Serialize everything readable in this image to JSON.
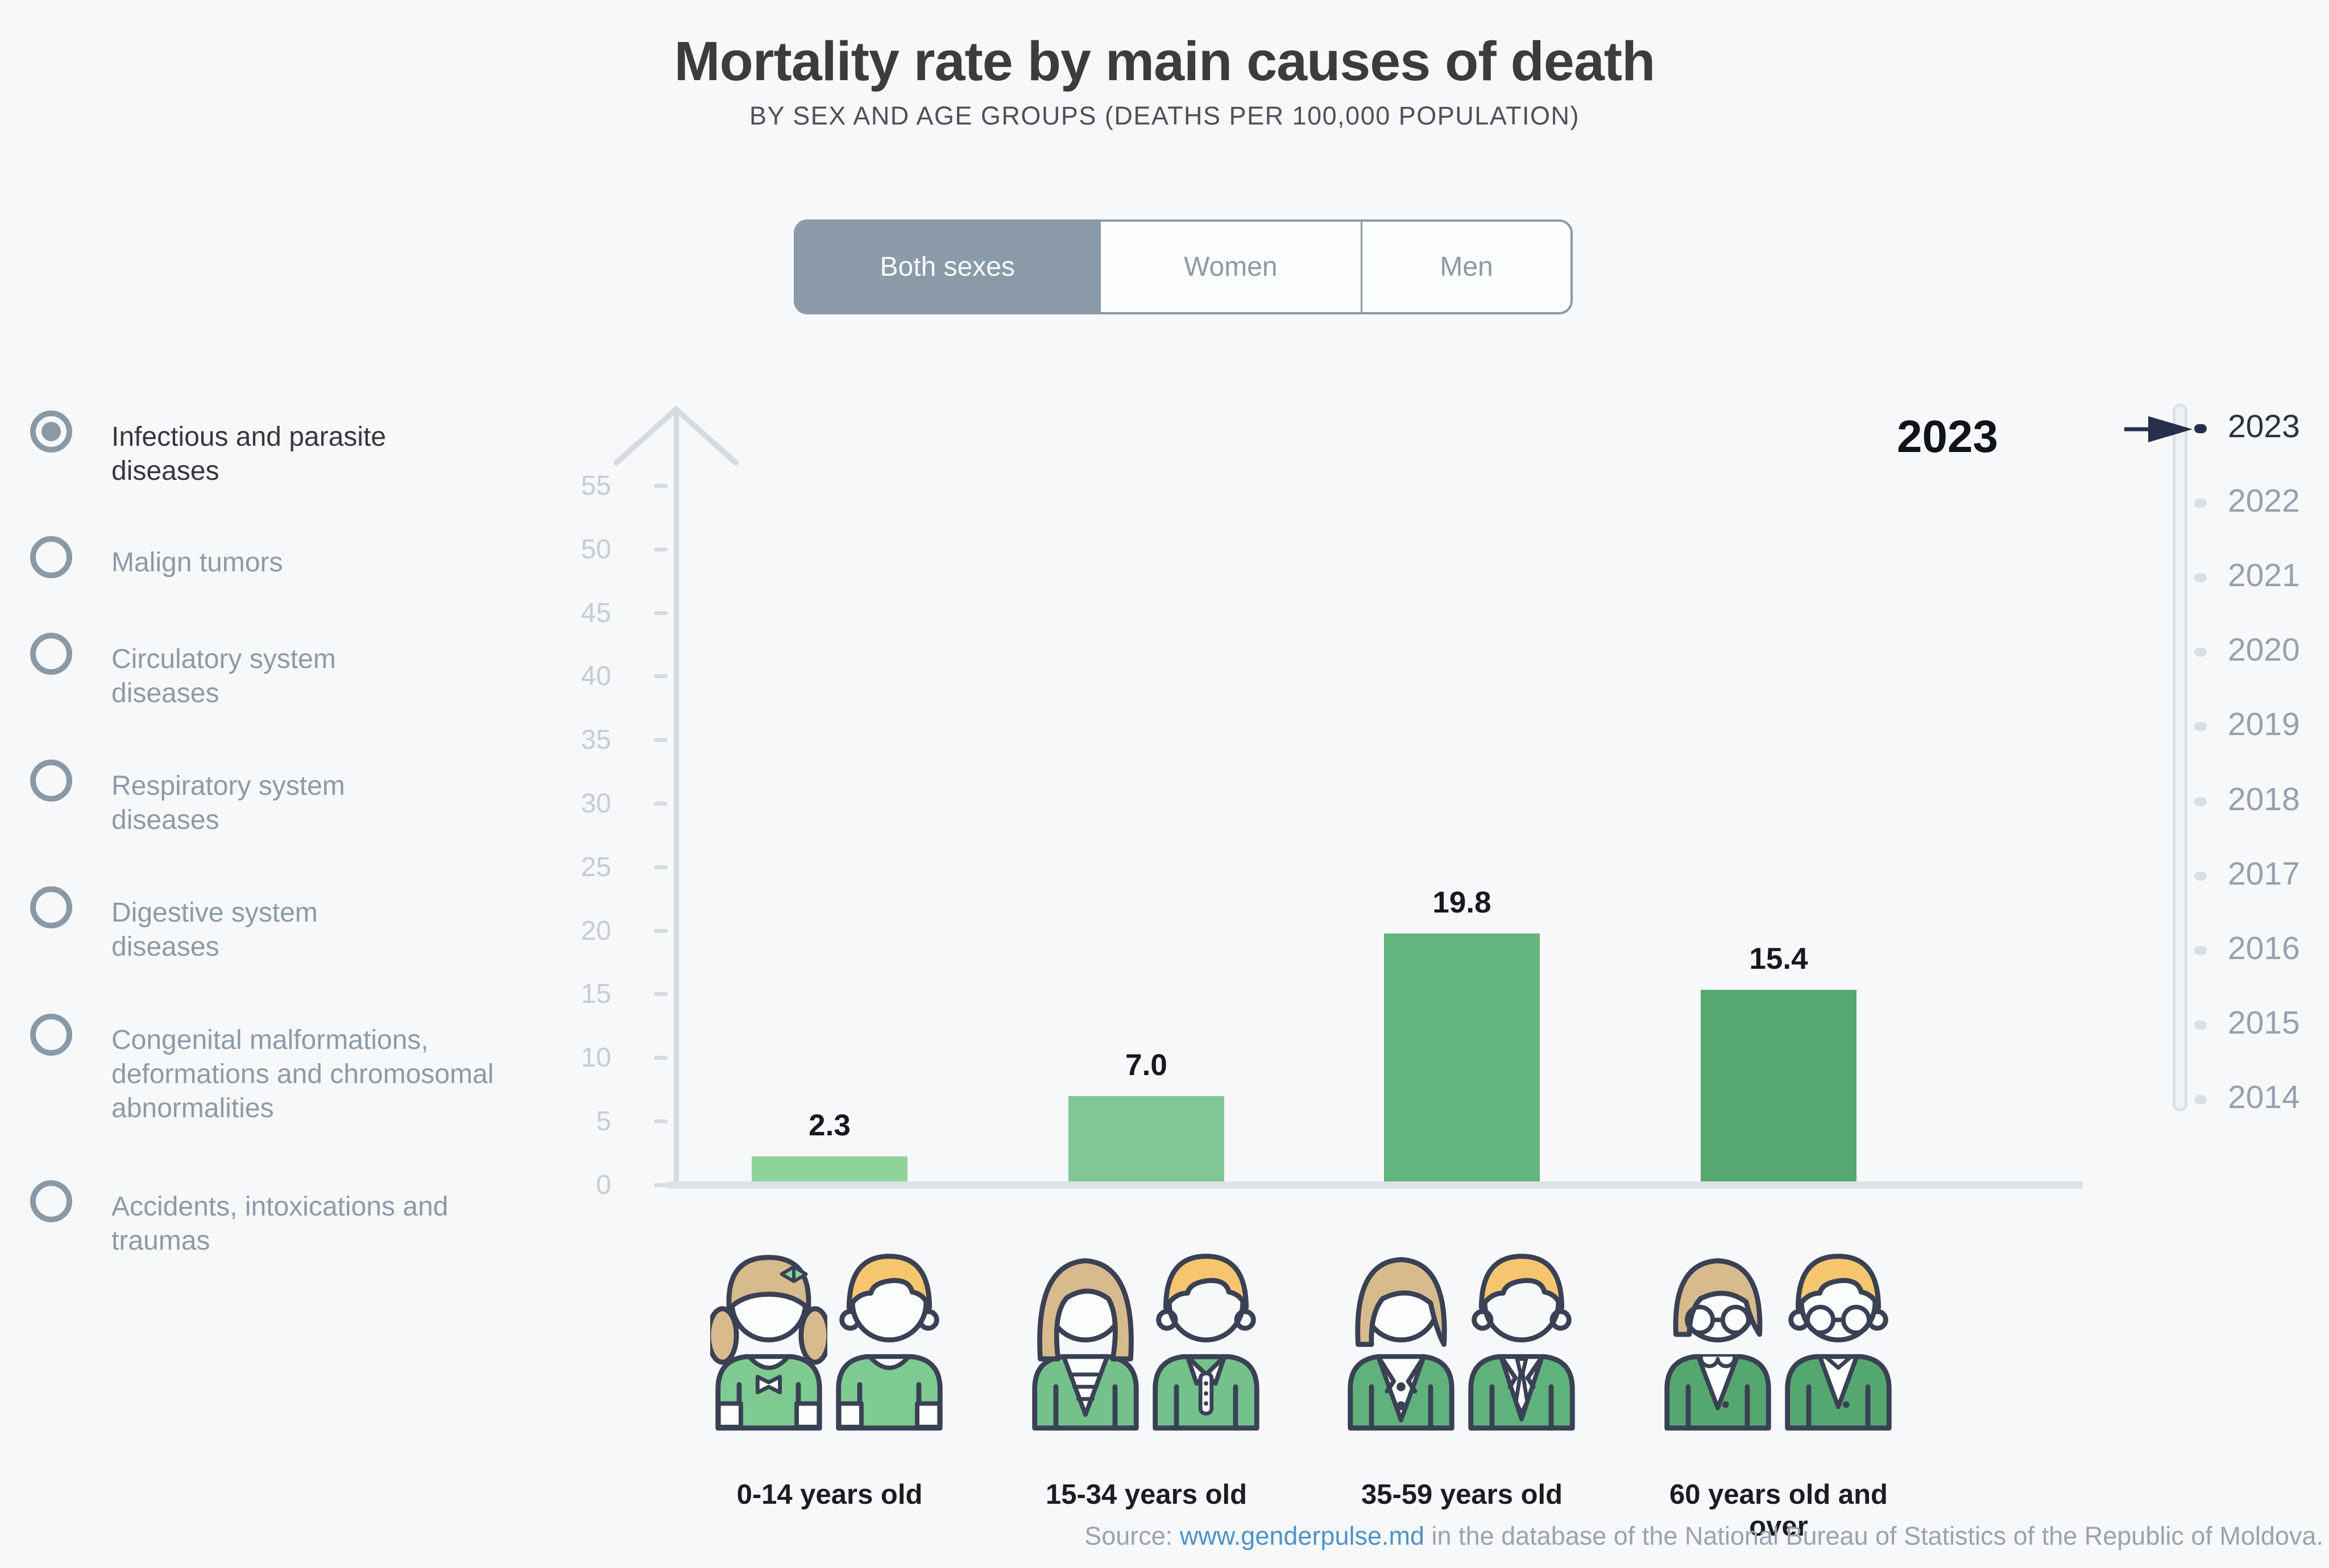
{
  "header": {
    "title": "Mortality rate by main causes of death",
    "subtitle": "BY SEX AND AGE GROUPS (DEATHS PER 100,000 POPULATION)"
  },
  "sex_toggle": {
    "options": [
      {
        "label": "Both sexes",
        "selected": true
      },
      {
        "label": "Women",
        "selected": false
      },
      {
        "label": "Men",
        "selected": false
      }
    ]
  },
  "causes": {
    "items": [
      {
        "label": "Infectious and parasite diseases",
        "selected": true
      },
      {
        "label": "Malign tumors",
        "selected": false
      },
      {
        "label": "Circulatory system diseases",
        "selected": false
      },
      {
        "label": "Respiratory system diseases",
        "selected": false
      },
      {
        "label": "Digestive system diseases",
        "selected": false
      },
      {
        "label": "Congenital malformations, deformations and chromosomal abnormalities",
        "selected": false
      },
      {
        "label": "Accidents, intoxications and traumas",
        "selected": false
      }
    ]
  },
  "chart_data": {
    "type": "bar",
    "title": "Mortality rate by main causes of death",
    "subtitle": "BY SEX AND AGE GROUPS (DEATHS PER 100,000 POPULATION)",
    "sex": "Both sexes",
    "cause": "Infectious and parasite diseases",
    "year": "2023",
    "categories": [
      "0-14 years old",
      "15-34 years old",
      "35-59 years old",
      "60 years old and over"
    ],
    "values": [
      2.3,
      7.0,
      19.8,
      15.4
    ],
    "value_labels": [
      "2.3",
      "7.0",
      "19.8",
      "15.4"
    ],
    "bar_colors": [
      "#8ED49A",
      "#80C797",
      "#64B47D",
      "#57A770"
    ],
    "xlabel": "",
    "ylabel": "",
    "ylim": [
      0,
      55
    ],
    "y_ticks": [
      "55",
      "50",
      "45",
      "40",
      "35",
      "30",
      "25",
      "20",
      "15",
      "10",
      "5",
      "0"
    ],
    "grid": false,
    "legend": "none"
  },
  "big_year": "2023",
  "timeline": {
    "selected": "2023",
    "years": [
      {
        "label": "2023",
        "selected": true
      },
      {
        "label": "2022",
        "selected": false
      },
      {
        "label": "2021",
        "selected": false
      },
      {
        "label": "2020",
        "selected": false
      },
      {
        "label": "2019",
        "selected": false
      },
      {
        "label": "2018",
        "selected": false
      },
      {
        "label": "2017",
        "selected": false
      },
      {
        "label": "2016",
        "selected": false
      },
      {
        "label": "2015",
        "selected": false
      },
      {
        "label": "2014",
        "selected": false
      }
    ]
  },
  "source": {
    "prefix": "Source: ",
    "link": "www.genderpulse.md",
    "suffix": " in the database of the National Bureau of Statistics of the Republic of Moldova."
  },
  "colors": {
    "background": "#F7F8F9",
    "accent_gray_blue": "#8B9AA8",
    "bars": [
      "#8ED49A",
      "#80C797",
      "#64B47D",
      "#57A770"
    ],
    "shirt_greens": [
      "#7ECB91",
      "#74C18C",
      "#5FB27B",
      "#55A770"
    ],
    "hair_female": "#D8BB8D",
    "hair_male": "#F6C66F",
    "icon_outline": "#3A4154",
    "axis_gray": "#D6DBE1",
    "tick_label_gray": "#C6CCD4",
    "year_active": "#2B3340",
    "year_inactive": "#97A1AE",
    "link_blue": "#4E92C8",
    "source_gray": "#9AA3AE"
  }
}
